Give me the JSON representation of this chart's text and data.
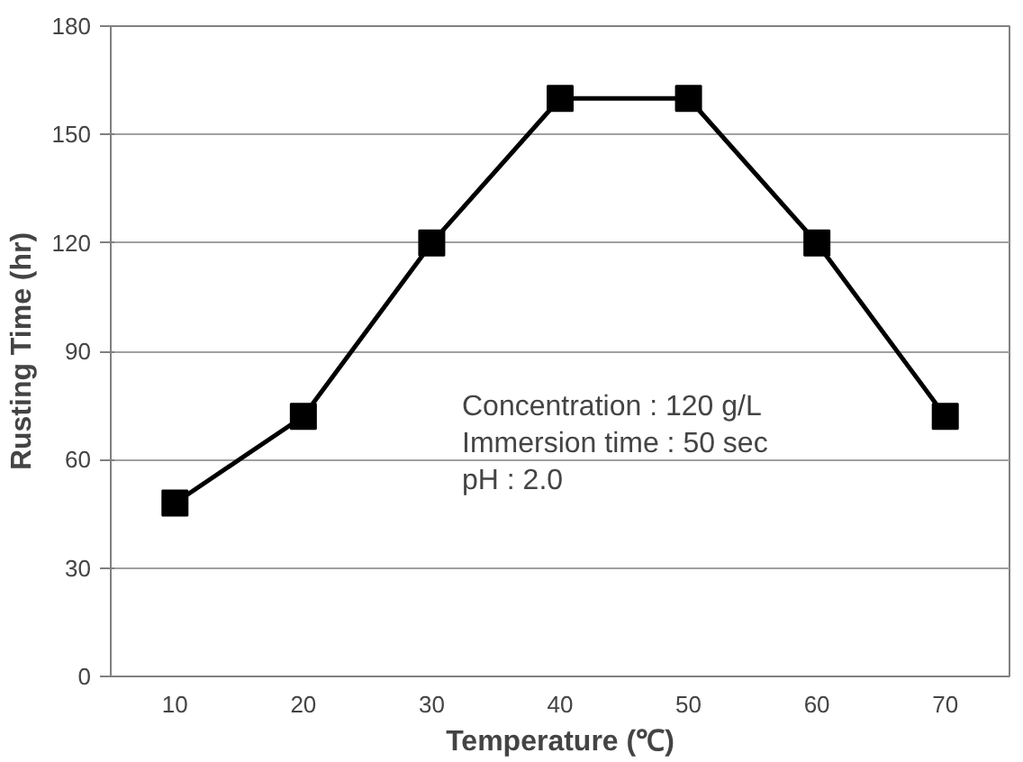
{
  "chart_data": {
    "type": "line",
    "xlabel": "Temperature (℃)",
    "ylabel": "Rusting Time (hr)",
    "categories": [
      "10",
      "20",
      "30",
      "40",
      "50",
      "60",
      "70"
    ],
    "series": [
      {
        "color": "#000000",
        "values": [
          48,
          72,
          120,
          160,
          160,
          120,
          72
        ]
      }
    ],
    "ylim": [
      0,
      180
    ],
    "yticks": [
      0,
      30,
      60,
      90,
      120,
      150,
      180
    ],
    "grid": "y",
    "marker": "square",
    "line_style": "solid",
    "annotations": [
      "Concentration : 120 g/L\nImmersion time : 50 sec\npH : 2.0"
    ]
  }
}
